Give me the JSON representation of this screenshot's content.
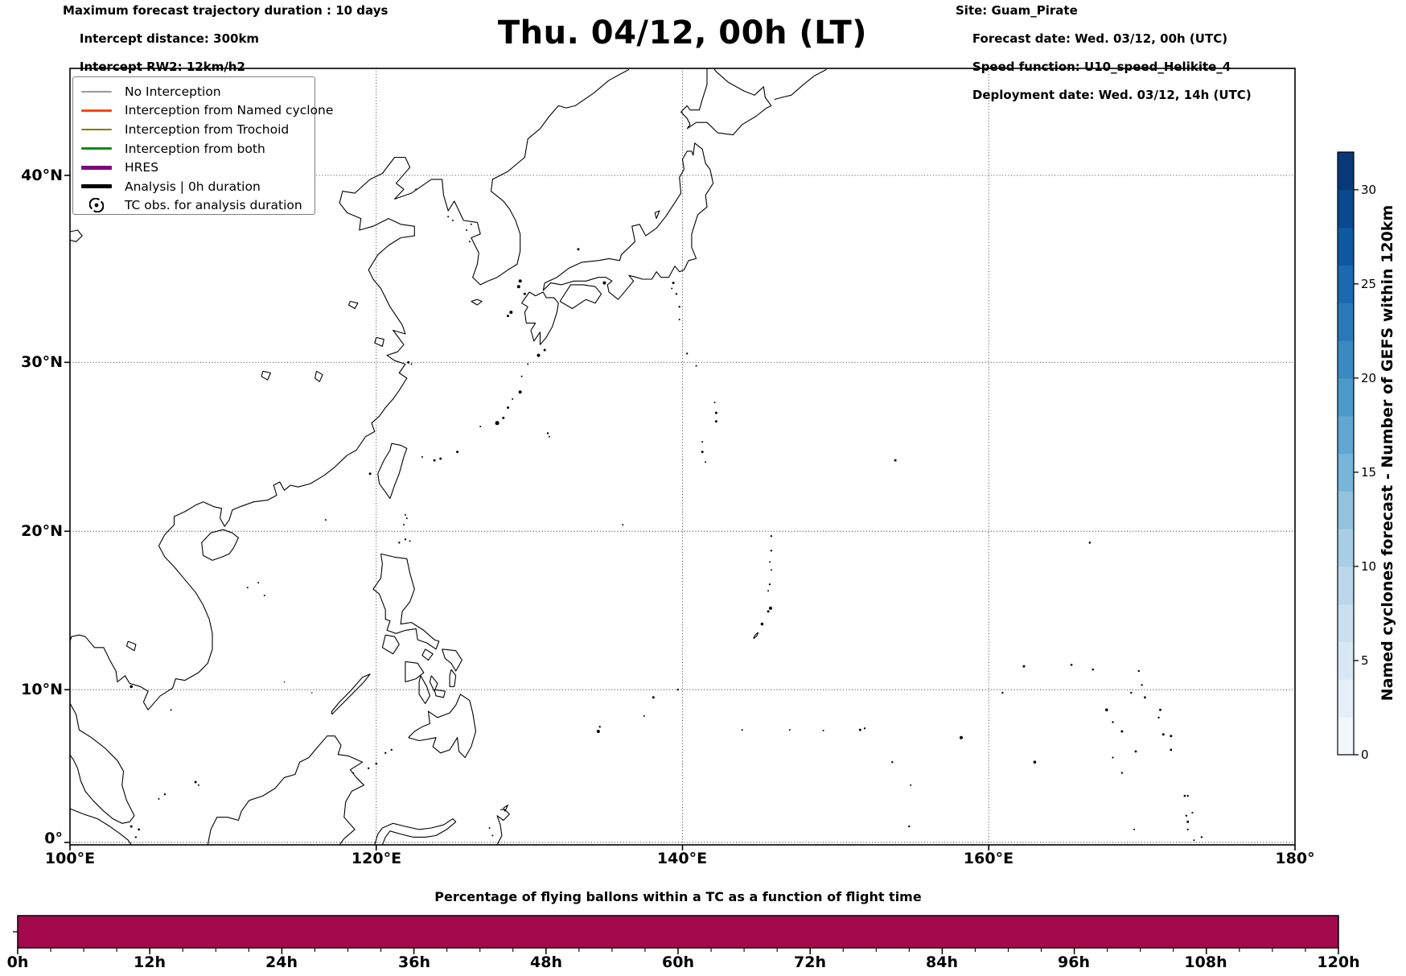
{
  "figure": {
    "header_left": {
      "line1": "Maximum forecast trajectory duration : 10 days",
      "line2": "Intercept distance: 300km",
      "line3": "Intercept RW2: 12km/h2"
    },
    "title": "Thu. 04/12, 00h (LT)",
    "header_right": {
      "line1": "Site: Guam_Pirate",
      "line2": "Forecast date: Wed. 03/12, 00h (UTC)",
      "line3": "Speed function: U10_speed_Helikite_4",
      "line4": "Deployment date: Wed. 03/12, 14h (UTC)"
    }
  },
  "legend": {
    "items": [
      {
        "label": "No Interception",
        "color": "#999999",
        "thick": false,
        "marker": "line"
      },
      {
        "label": "Interception from Named cyclone",
        "color": "#ff4500",
        "thick": false,
        "marker": "line"
      },
      {
        "label": "Interception from Trochoid",
        "color": "#808000",
        "thick": false,
        "marker": "line"
      },
      {
        "label": "Interception from both",
        "color": "#0d8c0d",
        "thick": false,
        "marker": "line"
      },
      {
        "label": "HRES",
        "color": "#800080",
        "thick": true,
        "marker": "line"
      },
      {
        "label": "Analysis | 0h duration",
        "color": "#000000",
        "thick": true,
        "marker": "line"
      },
      {
        "label": "TC obs. for analysis duration",
        "color": "#000000",
        "thick": false,
        "marker": "tc-symbol"
      }
    ]
  },
  "map_axes": {
    "lat_labels": [
      "40°N",
      "30°N",
      "20°N",
      "10°N",
      "0°"
    ],
    "lon_labels": [
      "100°E",
      "120°E",
      "140°E",
      "160°E",
      "180°"
    ]
  },
  "colorbar": {
    "label": "Named cyclones forecast - Number of GEFS within 120km",
    "tick_labels": [
      "0",
      "5",
      "10",
      "15",
      "20",
      "25",
      "30"
    ],
    "tick_values": [
      0,
      5,
      10,
      15,
      20,
      25,
      30
    ],
    "vmin": 0,
    "vmax": 32,
    "n_segments": 16,
    "colormap": "Blues"
  },
  "flight_bar": {
    "title": "Percentage of flying ballons within a TC as a function of flight time",
    "tick_labels": [
      "0h",
      "12h",
      "24h",
      "36h",
      "48h",
      "60h",
      "72h",
      "84h",
      "96h",
      "108h",
      "120h"
    ],
    "bar_color": "#a4094d"
  },
  "chart_data": [
    {
      "type": "map",
      "title": "Thu. 04/12, 00h (LT)",
      "projection": "Mercator",
      "region": {
        "lon_min": 100,
        "lon_max": 180,
        "lat_min": 0,
        "lat_max": 45
      },
      "gridlines": {
        "lon_ticks_deg": [
          100,
          120,
          140,
          160,
          180
        ],
        "lat_ticks_deg": [
          0,
          10,
          20,
          30,
          40
        ],
        "style": "dotted"
      },
      "features": "coastlines of East Asia and the Western Pacific (China, Korea, Japan, Taiwan, Philippines, Borneo, Micronesia island chains)",
      "plotted_trajectories": "none visible (no interception lines drawn on map)",
      "colorbar": {
        "label": "Named cyclones forecast - Number of GEFS within 120km",
        "range": [
          0,
          32
        ],
        "ticks": [
          0,
          5,
          10,
          15,
          20,
          25,
          30
        ],
        "colormap": "Blues",
        "n_bins": 16
      }
    },
    {
      "type": "bar",
      "title": "Percentage of flying ballons within a TC as a function of flight time",
      "x_ticks_hours": [
        0,
        12,
        24,
        36,
        48,
        60,
        72,
        84,
        96,
        108,
        120
      ],
      "x_minor_step_hours": 3,
      "bar_extent_hours": [
        0,
        120
      ],
      "bar_appearance": "single continuous full-height bar spanning 0h to 120h",
      "color": "#a4094d",
      "y_axis": "unlabeled (single unlabeled tick on left spine)"
    }
  ]
}
